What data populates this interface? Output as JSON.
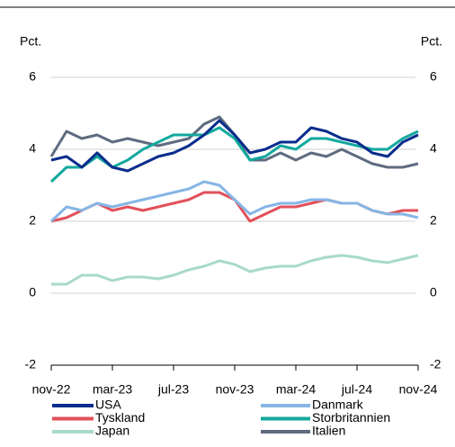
{
  "chart_data": {
    "type": "line",
    "ylabel": "Pct.",
    "y2label": "Pct.",
    "categories": [
      "nov-22",
      null,
      null,
      null,
      "mar-23",
      null,
      null,
      null,
      "jul-23",
      null,
      null,
      null,
      "nov-23",
      null,
      null,
      null,
      "mar-24",
      null,
      null,
      null,
      "jul-24",
      null,
      null,
      null,
      "nov-24"
    ],
    "ylim": [
      -2,
      6
    ],
    "yticks": [
      -2,
      0,
      2,
      4,
      6
    ],
    "y2lim": [
      -2,
      6
    ],
    "y2ticks": [
      -2,
      0,
      2,
      4,
      6
    ],
    "grid": true,
    "series": [
      {
        "name": "USA",
        "color": "#0a2d8c",
        "values": [
          3.7,
          3.8,
          3.5,
          3.9,
          3.5,
          3.4,
          3.6,
          3.8,
          3.9,
          4.1,
          4.4,
          4.8,
          4.4,
          3.9,
          4.0,
          4.2,
          4.2,
          4.6,
          4.5,
          4.3,
          4.2,
          3.9,
          3.8,
          4.2,
          4.4
        ]
      },
      {
        "name": "Danmark",
        "color": "#86b6e6",
        "values": [
          2.0,
          2.4,
          2.3,
          2.5,
          2.4,
          2.5,
          2.6,
          2.7,
          2.8,
          2.9,
          3.1,
          3.0,
          2.6,
          2.2,
          2.4,
          2.5,
          2.5,
          2.6,
          2.6,
          2.5,
          2.5,
          2.3,
          2.2,
          2.2,
          2.1
        ]
      },
      {
        "name": "Tyskland",
        "color": "#e2505a",
        "values": [
          2.0,
          2.1,
          2.3,
          2.5,
          2.3,
          2.4,
          2.3,
          2.4,
          2.5,
          2.6,
          2.8,
          2.8,
          2.6,
          2.0,
          2.2,
          2.4,
          2.4,
          2.5,
          2.6,
          2.5,
          2.5,
          2.3,
          2.2,
          2.3,
          2.3
        ]
      },
      {
        "name": "Storbritannien",
        "color": "#13a89e",
        "values": [
          3.1,
          3.5,
          3.5,
          3.8,
          3.5,
          3.7,
          4.0,
          4.2,
          4.4,
          4.4,
          4.4,
          4.6,
          4.3,
          3.7,
          3.8,
          4.1,
          4.0,
          4.3,
          4.3,
          4.2,
          4.1,
          4.0,
          4.0,
          4.3,
          4.5
        ]
      },
      {
        "name": "Japan",
        "color": "#a8dac8",
        "values": [
          0.25,
          0.25,
          0.5,
          0.5,
          0.35,
          0.45,
          0.45,
          0.4,
          0.5,
          0.65,
          0.75,
          0.9,
          0.8,
          0.6,
          0.7,
          0.75,
          0.75,
          0.9,
          1.0,
          1.05,
          1.0,
          0.9,
          0.85,
          0.95,
          1.05
        ]
      },
      {
        "name": "Italien",
        "color": "#5f6b7f",
        "values": [
          3.8,
          4.5,
          4.3,
          4.4,
          4.2,
          4.3,
          4.2,
          4.1,
          4.2,
          4.3,
          4.7,
          4.9,
          4.4,
          3.7,
          3.7,
          3.9,
          3.7,
          3.9,
          3.8,
          4.0,
          3.8,
          3.6,
          3.5,
          3.5,
          3.6
        ]
      }
    ]
  }
}
